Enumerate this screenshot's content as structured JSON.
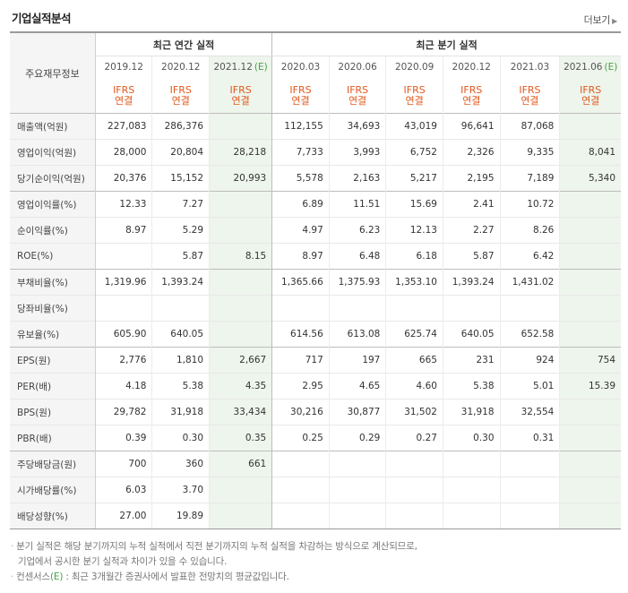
{
  "section_title": "기업실적분석",
  "more_link": "더보기",
  "row_header": "주요재무정보",
  "groups": {
    "annual": "최근 연간 실적",
    "quarterly": "최근 분기 실적"
  },
  "annual_periods": [
    {
      "date": "2019.12",
      "estimate": false
    },
    {
      "date": "2020.12",
      "estimate": false
    },
    {
      "date": "2021.12",
      "estimate": true
    }
  ],
  "quarter_periods": [
    {
      "date": "2020.03",
      "estimate": false
    },
    {
      "date": "2020.06",
      "estimate": false
    },
    {
      "date": "2020.09",
      "estimate": false
    },
    {
      "date": "2020.12",
      "estimate": false
    },
    {
      "date": "2021.03",
      "estimate": false
    },
    {
      "date": "2021.06",
      "estimate": true
    }
  ],
  "estimate_mark": "(E)",
  "ifrs": {
    "line1": "IFRS",
    "line2": "연결"
  },
  "rows": [
    {
      "label": "매출액(억원)",
      "values": [
        "227,083",
        "286,376",
        "",
        "112,155",
        "34,693",
        "43,019",
        "96,641",
        "87,068",
        ""
      ]
    },
    {
      "label": "영업이익(억원)",
      "values": [
        "28,000",
        "20,804",
        "28,218",
        "7,733",
        "3,993",
        "6,752",
        "2,326",
        "9,335",
        "8,041"
      ]
    },
    {
      "label": "당기순이익(억원)",
      "values": [
        "20,376",
        "15,152",
        "20,993",
        "5,578",
        "2,163",
        "5,217",
        "2,195",
        "7,189",
        "5,340"
      ]
    },
    {
      "label": "영업이익률(%)",
      "values": [
        "12.33",
        "7.27",
        "",
        "6.89",
        "11.51",
        "15.69",
        "2.41",
        "10.72",
        ""
      ]
    },
    {
      "label": "순이익률(%)",
      "values": [
        "8.97",
        "5.29",
        "",
        "4.97",
        "6.23",
        "12.13",
        "2.27",
        "8.26",
        ""
      ]
    },
    {
      "label": "ROE(%)",
      "values": [
        "",
        "5.87",
        "8.15",
        "8.97",
        "6.48",
        "6.18",
        "5.87",
        "6.42",
        ""
      ]
    },
    {
      "label": "부채비율(%)",
      "values": [
        "1,319.96",
        "1,393.24",
        "",
        "1,365.66",
        "1,375.93",
        "1,353.10",
        "1,393.24",
        "1,431.02",
        ""
      ]
    },
    {
      "label": "당좌비율(%)",
      "values": [
        "",
        "",
        "",
        "",
        "",
        "",
        "",
        "",
        ""
      ]
    },
    {
      "label": "유보율(%)",
      "values": [
        "605.90",
        "640.05",
        "",
        "614.56",
        "613.08",
        "625.74",
        "640.05",
        "652.58",
        ""
      ]
    },
    {
      "label": "EPS(원)",
      "values": [
        "2,776",
        "1,810",
        "2,667",
        "717",
        "197",
        "665",
        "231",
        "924",
        "754"
      ]
    },
    {
      "label": "PER(배)",
      "values": [
        "4.18",
        "5.38",
        "4.35",
        "2.95",
        "4.65",
        "4.60",
        "5.38",
        "5.01",
        "15.39"
      ]
    },
    {
      "label": "BPS(원)",
      "values": [
        "29,782",
        "31,918",
        "33,434",
        "30,216",
        "30,877",
        "31,502",
        "31,918",
        "32,554",
        ""
      ]
    },
    {
      "label": "PBR(배)",
      "values": [
        "0.39",
        "0.30",
        "0.35",
        "0.25",
        "0.29",
        "0.27",
        "0.30",
        "0.31",
        ""
      ]
    },
    {
      "label": "주당배당금(원)",
      "values": [
        "700",
        "360",
        "661",
        "",
        "",
        "",
        "",
        "",
        ""
      ]
    },
    {
      "label": "시가배당률(%)",
      "values": [
        "6.03",
        "3.70",
        "",
        "",
        "",
        "",
        "",
        "",
        ""
      ]
    },
    {
      "label": "배당성향(%)",
      "values": [
        "27.00",
        "19.89",
        "",
        "",
        "",
        "",
        "",
        "",
        ""
      ]
    }
  ],
  "notes": {
    "line1": "분기 실적은 해당 분기까지의 누적 실적에서 직전 분기까지의 누적 실적을 차감하는 방식으로 계산되므로,",
    "line2": "기업에서 공시한 분기 실적과 차이가 있을 수 있습니다.",
    "line3_prefix": "컨센서스",
    "line3_mark": "(E)",
    "line3_suffix": ": 최근 3개월간 증권사에서 발표한 전망치의 평균값입니다."
  }
}
